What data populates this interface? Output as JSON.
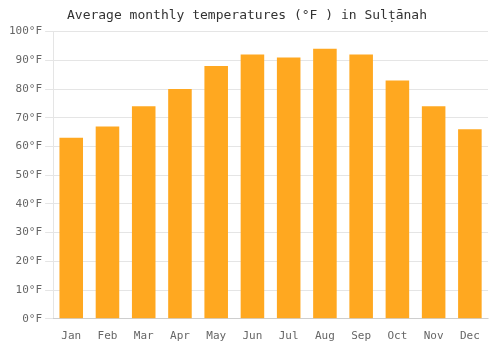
{
  "chart_data": {
    "type": "bar",
    "title": "Average monthly temperatures (°F ) in Sulṭānah",
    "categories": [
      "Jan",
      "Feb",
      "Mar",
      "Apr",
      "May",
      "Jun",
      "Jul",
      "Aug",
      "Sep",
      "Oct",
      "Nov",
      "Dec"
    ],
    "values": [
      63,
      67,
      74,
      80,
      88,
      92,
      91,
      94,
      92,
      83,
      74,
      66
    ],
    "color": "#FFA820",
    "ylim": [
      0,
      100
    ],
    "yticks": [
      {
        "value": 0,
        "label": "0°F"
      },
      {
        "value": 10,
        "label": "10°F"
      },
      {
        "value": 20,
        "label": "20°F"
      },
      {
        "value": 30,
        "label": "30°F"
      },
      {
        "value": 40,
        "label": "40°F"
      },
      {
        "value": 50,
        "label": "50°F"
      },
      {
        "value": 60,
        "label": "60°F"
      },
      {
        "value": 70,
        "label": "70°F"
      },
      {
        "value": 80,
        "label": "80°F"
      },
      {
        "value": 90,
        "label": "90°F"
      },
      {
        "value": 100,
        "label": "100°F"
      }
    ],
    "grid": true
  }
}
